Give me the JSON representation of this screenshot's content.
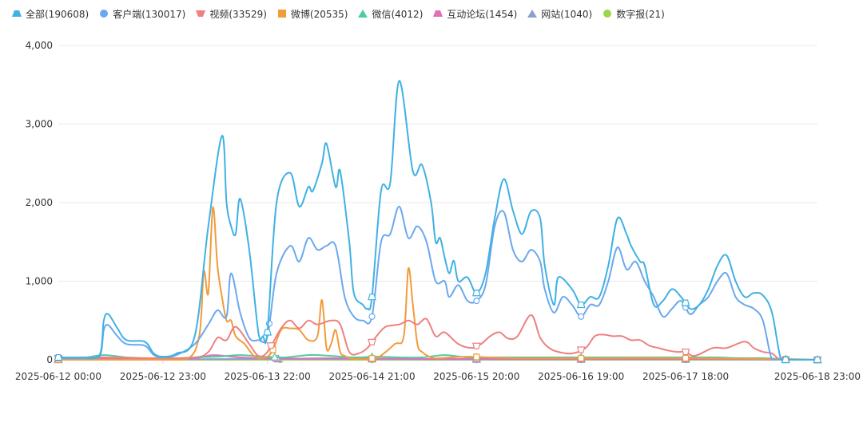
{
  "chart_data": {
    "type": "line",
    "x_labels": [
      "2025-06-12 00:00",
      "2025-06-12 23:00",
      "2025-06-13 22:00",
      "2025-06-14 21:00",
      "2025-06-15 20:00",
      "2025-06-16 19:00",
      "2025-06-17 18:00",
      "2025-06-18 23:00"
    ],
    "x_label_hours": [
      0,
      23,
      46,
      69,
      92,
      115,
      138,
      167
    ],
    "x_range_hours": [
      0,
      167
    ],
    "ylim": [
      0,
      4000
    ],
    "y_ticks": [
      0,
      1000,
      2000,
      3000,
      4000
    ],
    "y_tick_labels": [
      "0",
      "1,000",
      "2,000",
      "3,000",
      "4,000"
    ],
    "grid": true,
    "legend_position": "top-left",
    "series": [
      {
        "name": "全部(190608)",
        "color": "#3fb1e3",
        "marker": "trapezoid",
        "hours": [
          0,
          5,
          9,
          10,
          11,
          13,
          15,
          19,
          21,
          23,
          26,
          30,
          33,
          36,
          37,
          38,
          39,
          40,
          42,
          44,
          45,
          46,
          48,
          51,
          53,
          55,
          56,
          58,
          59,
          61,
          62,
          64,
          65,
          67,
          68,
          69,
          71,
          73,
          75,
          78,
          80,
          82,
          83,
          84,
          85,
          86,
          87,
          88,
          90,
          92,
          94,
          96,
          98,
          100,
          102,
          104,
          106,
          107,
          109,
          110,
          113,
          115,
          117,
          119,
          121,
          123,
          125,
          126,
          128,
          129,
          131,
          133,
          135,
          137,
          139,
          141,
          143,
          145,
          147,
          149,
          151,
          153,
          155,
          157,
          159,
          161,
          163,
          165,
          167
        ],
        "values": [
          30,
          30,
          50,
          500,
          580,
          400,
          250,
          230,
          80,
          40,
          80,
          300,
          1700,
          2850,
          2000,
          1700,
          1600,
          2050,
          1400,
          350,
          300,
          350,
          2000,
          2380,
          1950,
          2200,
          2150,
          2500,
          2750,
          2200,
          2400,
          1500,
          850,
          700,
          650,
          800,
          2150,
          2250,
          3550,
          2400,
          2480,
          2000,
          1500,
          1550,
          1300,
          1100,
          1260,
          1000,
          1050,
          850,
          1100,
          1800,
          2300,
          1900,
          1600,
          1890,
          1800,
          1200,
          700,
          1050,
          900,
          700,
          800,
          800,
          1200,
          1800,
          1600,
          1450,
          1250,
          1200,
          700,
          750,
          900,
          800,
          650,
          700,
          900,
          1200,
          1330,
          1000,
          800,
          850,
          820,
          600,
          0,
          0,
          0,
          0,
          0
        ]
      },
      {
        "name": "客户端(130017)",
        "color": "#6aa8f0",
        "marker": "circle",
        "hours": [
          0,
          5,
          9,
          10,
          11,
          13,
          15,
          19,
          21,
          23,
          26,
          30,
          33,
          35,
          37,
          38,
          40,
          42,
          44,
          46,
          48,
          51,
          53,
          55,
          57,
          59,
          61,
          63,
          65,
          67,
          69,
          71,
          73,
          75,
          77,
          79,
          81,
          83,
          85,
          86,
          88,
          90,
          92,
          94,
          96,
          98,
          100,
          102,
          104,
          106,
          107,
          109,
          111,
          113,
          115,
          117,
          119,
          121,
          123,
          125,
          127,
          129,
          131,
          133,
          135,
          137,
          139,
          141,
          143,
          145,
          147,
          149,
          151,
          153,
          155,
          157,
          159,
          161,
          163,
          165,
          167
        ],
        "values": [
          20,
          20,
          40,
          380,
          440,
          300,
          200,
          180,
          60,
          30,
          60,
          200,
          450,
          630,
          550,
          1100,
          600,
          280,
          250,
          300,
          1100,
          1450,
          1250,
          1550,
          1400,
          1450,
          1450,
          800,
          550,
          500,
          550,
          1500,
          1600,
          1950,
          1550,
          1700,
          1500,
          1000,
          1000,
          800,
          950,
          750,
          750,
          950,
          1700,
          1880,
          1400,
          1250,
          1400,
          1250,
          900,
          600,
          800,
          700,
          550,
          700,
          700,
          1000,
          1430,
          1150,
          1250,
          1000,
          800,
          550,
          650,
          750,
          580,
          700,
          800,
          1000,
          1100,
          800,
          700,
          650,
          500,
          0,
          0,
          0,
          0,
          0,
          0
        ]
      },
      {
        "name": "视频(33529)",
        "color": "#ee8080",
        "marker": "trapezoid-down",
        "hours": [
          0,
          10,
          20,
          30,
          33,
          35,
          37,
          39,
          42,
          44,
          46,
          49,
          51,
          53,
          55,
          57,
          60,
          62,
          64,
          66,
          68,
          70,
          72,
          75,
          77,
          79,
          81,
          83,
          85,
          88,
          91,
          93,
          95,
          97,
          99,
          101,
          104,
          106,
          108,
          110,
          113,
          116,
          118,
          120,
          122,
          124,
          126,
          128,
          130,
          132,
          134,
          136,
          138,
          140,
          144,
          147,
          151,
          153,
          155,
          157,
          159,
          163,
          167
        ],
        "values": [
          20,
          30,
          20,
          30,
          100,
          280,
          250,
          420,
          200,
          50,
          100,
          400,
          500,
          400,
          500,
          450,
          500,
          450,
          100,
          80,
          150,
          300,
          420,
          450,
          500,
          450,
          520,
          300,
          350,
          200,
          150,
          200,
          300,
          350,
          270,
          300,
          570,
          280,
          150,
          100,
          80,
          150,
          300,
          320,
          300,
          300,
          250,
          250,
          180,
          150,
          120,
          100,
          100,
          50,
          150,
          150,
          230,
          150,
          100,
          80,
          0,
          0,
          0
        ]
      },
      {
        "name": "微博(20535)",
        "color": "#f29b3a",
        "marker": "square",
        "hours": [
          0,
          20,
          28,
          31,
          32,
          33,
          34,
          35,
          36,
          37,
          38,
          39,
          41,
          43,
          45,
          47,
          49,
          51,
          53,
          55,
          57,
          58,
          59,
          60,
          61,
          62,
          63,
          64,
          66,
          70,
          74,
          76,
          77,
          78,
          79,
          80,
          82,
          84,
          90,
          100,
          120,
          140,
          167
        ],
        "values": [
          0,
          0,
          0,
          300,
          1120,
          850,
          1940,
          1200,
          800,
          500,
          500,
          300,
          200,
          50,
          20,
          100,
          380,
          400,
          380,
          250,
          300,
          760,
          150,
          200,
          380,
          100,
          50,
          20,
          10,
          20,
          200,
          300,
          1160,
          700,
          200,
          100,
          30,
          20,
          40,
          20,
          20,
          20,
          0
        ]
      },
      {
        "name": "微信(4012)",
        "color": "#4ecba0",
        "marker": "triangle",
        "hours": [
          0,
          5,
          10,
          15,
          20,
          25,
          30,
          35,
          40,
          45,
          50,
          55,
          60,
          65,
          70,
          75,
          80,
          85,
          90,
          95,
          100,
          105,
          110,
          115,
          120,
          125,
          130,
          135,
          140,
          145,
          150,
          155,
          160,
          167
        ],
        "values": [
          10,
          20,
          60,
          30,
          20,
          15,
          30,
          40,
          60,
          40,
          30,
          60,
          50,
          30,
          40,
          30,
          30,
          60,
          30,
          30,
          30,
          30,
          30,
          30,
          30,
          30,
          30,
          30,
          30,
          30,
          20,
          20,
          10,
          0
        ]
      },
      {
        "name": "互动论坛(1454)",
        "color": "#e070b8",
        "marker": "trapezoid",
        "hours": [
          0,
          10,
          20,
          30,
          34,
          40,
          50,
          60,
          70,
          80,
          90,
          100,
          110,
          120,
          130,
          140,
          150,
          160,
          167
        ],
        "values": [
          0,
          10,
          10,
          20,
          60,
          30,
          15,
          20,
          15,
          10,
          10,
          10,
          10,
          10,
          10,
          10,
          10,
          5,
          0
        ]
      },
      {
        "name": "网站(1040)",
        "color": "#8e9ed0",
        "marker": "triangle",
        "hours": [
          0,
          20,
          40,
          60,
          80,
          100,
          120,
          140,
          167
        ],
        "values": [
          5,
          5,
          10,
          10,
          5,
          5,
          5,
          5,
          0
        ]
      },
      {
        "name": "数字报(21)",
        "color": "#9cd64c",
        "marker": "circle",
        "hours": [
          0,
          20,
          40,
          60,
          80,
          100,
          120,
          140,
          167
        ],
        "values": [
          0,
          0,
          0,
          0,
          0,
          0,
          0,
          0,
          0
        ]
      }
    ]
  }
}
